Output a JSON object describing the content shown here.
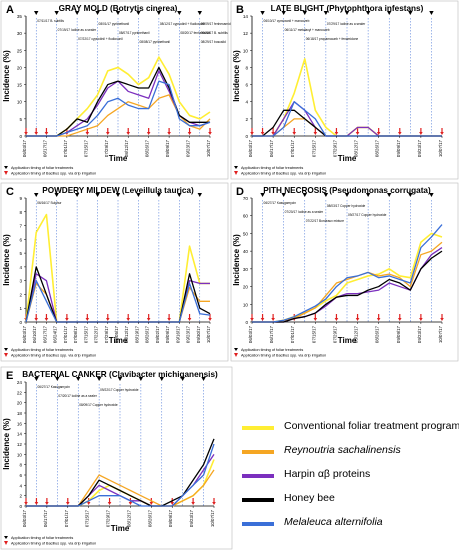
{
  "colors": {
    "conventional": "#ffee33",
    "reynoutria": "#f5a623",
    "harpin": "#7b2fbe",
    "honeybee": "#000000",
    "melaleuca": "#3a6fd8",
    "foliar_marker": "#000000",
    "drip_marker": "#e02020",
    "guide_line": "#2a5fd0"
  },
  "legend": [
    {
      "label": "Conventional foliar treatment program",
      "color_key": "conventional"
    },
    {
      "label": "Reynoutria sachalinensis",
      "color_key": "reynoutria"
    },
    {
      "label": "Harpin αβ proteins",
      "color_key": "harpin"
    },
    {
      "label": "Honey bee",
      "color_key": "honeybee"
    },
    {
      "label": "Melaleuca alternifolia",
      "color_key": "melaleuca"
    }
  ],
  "common": {
    "ylabel": "Incidence (%)",
    "xlabel": "Time",
    "note_foliar": "Application timing of foliar treatments",
    "note_drip": "Application timing of Bacillus spp. via drip irrigation"
  },
  "chart_data": [
    {
      "panel": "A",
      "type": "line",
      "title": "GRAY MOLD (Botrytis cinerea)",
      "x": [
        "06/03/17",
        "06/10/17",
        "06/17/17",
        "06/24/17",
        "07/01/17",
        "07/08/17",
        "07/15/17",
        "07/22/17",
        "07/29/17",
        "08/05/17",
        "08/12/17",
        "08/19/17",
        "08/26/17",
        "09/02/17",
        "09/09/17",
        "09/16/17",
        "09/23/17",
        "09/30/17",
        "10/07/17"
      ],
      "x_ticks": [
        "06/03/17",
        "06/17/17",
        "07/01/17",
        "07/15/17",
        "07/29/17",
        "08/12/17",
        "08/26/17",
        "09/09/17",
        "09/23/17",
        "10/07/17"
      ],
      "ylim": [
        0,
        35
      ],
      "yticks": [
        0,
        5,
        10,
        15,
        20,
        25,
        30,
        35
      ],
      "series": [
        {
          "name": "Conventional foliar treatment program",
          "color_key": "conventional",
          "values": [
            0,
            0,
            0,
            0,
            2,
            5,
            8,
            12,
            19,
            20,
            18,
            15,
            17,
            23,
            18,
            10,
            6,
            5,
            7
          ]
        },
        {
          "name": "Reynoutria sachalinensis",
          "color_key": "reynoutria",
          "values": [
            0,
            0,
            0,
            0,
            0,
            1,
            2,
            3,
            6,
            8,
            10,
            9,
            8,
            11,
            12,
            6,
            3,
            2,
            5
          ]
        },
        {
          "name": "Harpin αβ proteins",
          "color_key": "harpin",
          "values": [
            0,
            0,
            0,
            0,
            1,
            3,
            5,
            9,
            14,
            16,
            13,
            12,
            11,
            19,
            13,
            6,
            4,
            3,
            4
          ]
        },
        {
          "name": "Honey bee",
          "color_key": "honeybee",
          "values": [
            0,
            0,
            0,
            0,
            2,
            5,
            4,
            10,
            15,
            16,
            15,
            14,
            14,
            20,
            14,
            6,
            4,
            4,
            4
          ]
        },
        {
          "name": "Melaleuca alternifolia",
          "color_key": "melaleuca",
          "values": [
            0,
            0,
            0,
            0,
            1,
            2,
            3,
            6,
            10,
            11,
            9,
            8,
            8,
            16,
            15,
            5,
            3,
            3,
            4
          ]
        }
      ],
      "foliar_applications": [
        1,
        3,
        5,
        7,
        9,
        11,
        13,
        15,
        17
      ],
      "drip_applications": [
        0,
        1,
        2,
        4,
        6,
        8,
        10,
        12,
        14,
        16,
        18
      ],
      "annotations": [
        "07/11/17 B. subtilis",
        "07/19/17 Iodine as a sealer",
        "07/22/17 cyprodinil + fludioxonil",
        "08/01/17 pyrimethanil",
        "08/07/17 pyrimethanil",
        "08/08/17 pyrimethanil",
        "08/12/17 cyprodinil + fludioxonil",
        "08/20/17 fenhexamid",
        "08/29/17 boscalid",
        "09/09/17 fenhexamid",
        "09/22/17 B. subtilis"
      ]
    },
    {
      "panel": "B",
      "type": "line",
      "title": "LATE BLIGHT (Phytophthora infestans)",
      "x": [
        "06/03/17",
        "06/10/17",
        "06/17/17",
        "06/24/17",
        "07/01/17",
        "07/08/17",
        "07/15/17",
        "07/22/17",
        "07/29/17",
        "08/05/17",
        "08/12/17",
        "08/19/17",
        "08/26/17",
        "09/02/17",
        "09/09/17",
        "09/16/17",
        "09/23/17",
        "09/30/17",
        "10/07/17"
      ],
      "x_ticks": [
        "06/03/17",
        "06/17/17",
        "07/01/17",
        "07/15/17",
        "07/29/17",
        "08/12/17",
        "08/26/17",
        "09/09/17",
        "09/23/17",
        "10/07/17"
      ],
      "ylim": [
        0,
        14
      ],
      "yticks": [
        0,
        2,
        4,
        6,
        8,
        10,
        12,
        14
      ],
      "series": [
        {
          "name": "Conventional foliar treatment program",
          "color_key": "conventional",
          "values": [
            0,
            0,
            0,
            2,
            5,
            9,
            3,
            1,
            0,
            0,
            1,
            1,
            0,
            0,
            0,
            0,
            0,
            0,
            0
          ]
        },
        {
          "name": "Reynoutria sachalinensis",
          "color_key": "reynoutria",
          "values": [
            0,
            0,
            0,
            1,
            2,
            2,
            1,
            0,
            0,
            0,
            0,
            0,
            0,
            0,
            0,
            0,
            0,
            0,
            0
          ]
        },
        {
          "name": "Harpin αβ proteins",
          "color_key": "harpin",
          "values": [
            0,
            0,
            0,
            2,
            4,
            3,
            1,
            0,
            0,
            0,
            1,
            1,
            0,
            0,
            0,
            0,
            0,
            0,
            0
          ]
        },
        {
          "name": "Honey bee",
          "color_key": "honeybee",
          "values": [
            0,
            0,
            1,
            3,
            3,
            2,
            1,
            0,
            0,
            0,
            0,
            0,
            0,
            0,
            0,
            0,
            0,
            0,
            0
          ]
        },
        {
          "name": "Melaleuca alternifolia",
          "color_key": "melaleuca",
          "values": [
            0,
            0,
            0,
            1,
            4,
            3,
            2,
            0,
            0,
            0,
            0,
            0,
            0,
            0,
            0,
            0,
            0,
            0,
            0
          ]
        }
      ],
      "foliar_applications": [
        1,
        3,
        5,
        7,
        9,
        11,
        13,
        15,
        17
      ],
      "drip_applications": [
        0,
        1,
        2,
        4,
        6,
        8,
        10,
        12,
        14,
        16,
        18
      ],
      "annotations": [
        "06/10/17 cymoxanil + mancozeb",
        "06/11/17 metalaxyl + mancozeb",
        "06/18/17 propamocarb + fenamidone",
        "07/29/17 iodine as a sealer"
      ]
    },
    {
      "panel": "C",
      "type": "line",
      "title": "POWDERY MILDEW (Leveillula taurica)",
      "x": [
        "06/03/17",
        "06/10/17",
        "06/17/17",
        "06/24/17",
        "07/01/17",
        "07/08/17",
        "07/15/17",
        "07/22/17",
        "07/29/17",
        "08/05/17",
        "08/12/17",
        "08/19/17",
        "08/26/17",
        "09/02/17",
        "09/09/17",
        "09/16/17",
        "09/23/17",
        "09/30/17",
        "10/07/17"
      ],
      "x_ticks": [
        "06/03/17",
        "06/10/17",
        "06/17/17",
        "06/24/17",
        "07/01/17",
        "07/08/17",
        "07/15/17",
        "07/22/17",
        "07/29/17",
        "08/05/17",
        "08/12/17",
        "08/19/17",
        "08/26/17",
        "09/02/17",
        "09/09/17",
        "09/16/17",
        "09/23/17",
        "09/30/17",
        "10/07/17"
      ],
      "ylim": [
        0,
        9
      ],
      "yticks": [
        0,
        1,
        2,
        3,
        4,
        5,
        6,
        7,
        8,
        9
      ],
      "series": [
        {
          "name": "Conventional foliar treatment program",
          "color_key": "conventional",
          "values": [
            0,
            6.5,
            7.8,
            0,
            0,
            0,
            0,
            0,
            0,
            0,
            0,
            0,
            0,
            0,
            0,
            0,
            5.5,
            2.8,
            2.8
          ]
        },
        {
          "name": "Reynoutria sachalinensis",
          "color_key": "reynoutria",
          "values": [
            0,
            2.8,
            2,
            0,
            0,
            0,
            0,
            0,
            0,
            0,
            0,
            0,
            0,
            0,
            0,
            0,
            2.5,
            1.5,
            1.5
          ]
        },
        {
          "name": "Harpin αβ proteins",
          "color_key": "harpin",
          "values": [
            0,
            3.5,
            3,
            0,
            0,
            0,
            0,
            0,
            0,
            0,
            0,
            0,
            0,
            0,
            0,
            0,
            3,
            2.8,
            2.8
          ]
        },
        {
          "name": "Honey bee",
          "color_key": "honeybee",
          "values": [
            0,
            4,
            2,
            0,
            0,
            0,
            0,
            0,
            0,
            0,
            0,
            0,
            0,
            0,
            0,
            0,
            3.5,
            1,
            0.6
          ]
        },
        {
          "name": "Melaleuca alternifolia",
          "color_key": "melaleuca",
          "values": [
            0,
            3,
            1.5,
            0,
            0,
            0,
            0,
            0,
            0,
            0,
            0,
            0,
            0,
            0,
            0,
            0,
            2.8,
            0.6,
            0.5
          ]
        }
      ],
      "foliar_applications": [
        1,
        3,
        5,
        7,
        9,
        11,
        13,
        15,
        17
      ],
      "drip_applications": [
        0,
        1,
        2,
        4,
        6,
        8,
        10,
        12,
        14,
        16,
        18
      ],
      "annotations": [
        "06/16/17 Sulphur"
      ]
    },
    {
      "panel": "D",
      "type": "line",
      "title": "PITH NECROSIS (Pseudomonas corrugata)",
      "x": [
        "06/03/17",
        "06/10/17",
        "06/17/17",
        "06/24/17",
        "07/01/17",
        "07/08/17",
        "07/15/17",
        "07/22/17",
        "07/29/17",
        "08/05/17",
        "08/12/17",
        "08/19/17",
        "08/26/17",
        "09/02/17",
        "09/09/17",
        "09/16/17",
        "09/23/17",
        "09/30/17",
        "10/07/17"
      ],
      "x_ticks": [
        "06/03/17",
        "06/17/17",
        "07/01/17",
        "07/15/17",
        "07/29/17",
        "08/12/17",
        "08/26/17",
        "09/09/17",
        "09/23/17",
        "10/07/17"
      ],
      "ylim": [
        0,
        70
      ],
      "yticks": [
        0,
        10,
        20,
        30,
        40,
        50,
        60,
        70
      ],
      "series": [
        {
          "name": "Conventional foliar treatment program",
          "color_key": "conventional",
          "values": [
            0,
            0,
            0,
            1,
            3,
            5,
            8,
            12,
            15,
            22,
            24,
            26,
            27,
            30,
            26,
            25,
            45,
            50,
            48
          ]
        },
        {
          "name": "Reynoutria sachalinensis",
          "color_key": "reynoutria",
          "values": [
            0,
            0,
            0,
            1,
            2,
            5,
            8,
            15,
            22,
            24,
            26,
            28,
            26,
            27,
            25,
            20,
            38,
            40,
            45
          ]
        },
        {
          "name": "Harpin αβ proteins",
          "color_key": "harpin",
          "values": [
            0,
            0,
            0,
            0,
            2,
            3,
            5,
            9,
            14,
            16,
            16,
            17,
            18,
            22,
            20,
            18,
            30,
            38,
            42
          ]
        },
        {
          "name": "Honey bee",
          "color_key": "honeybee",
          "values": [
            0,
            0,
            0,
            0,
            2,
            3,
            5,
            10,
            14,
            15,
            15,
            18,
            20,
            24,
            22,
            18,
            30,
            36,
            40
          ]
        },
        {
          "name": "Melaleuca alternifolia",
          "color_key": "melaleuca",
          "values": [
            0,
            0,
            0,
            1,
            3,
            6,
            9,
            13,
            20,
            25,
            26,
            28,
            25,
            26,
            24,
            22,
            42,
            48,
            55
          ]
        }
      ],
      "foliar_applications": [
        1,
        3,
        5,
        7,
        9,
        11,
        13,
        15,
        17
      ],
      "drip_applications": [
        0,
        1,
        2,
        4,
        6,
        8,
        10,
        12,
        14,
        16,
        18
      ],
      "annotations": [
        "06/27/17 Kasugamycin",
        "07/20/17 Iodine as a sealer",
        "07/22/17 Bordeaux mixture",
        "08/03/17 Copper hydroxide",
        "09/27/17 Copper hydroxide"
      ]
    },
    {
      "panel": "E",
      "type": "line",
      "title": "BACTERIAL CANKER (Clavibacter michiganensis)",
      "x": [
        "06/03/17",
        "06/10/17",
        "06/17/17",
        "06/24/17",
        "07/01/17",
        "07/08/17",
        "07/15/17",
        "07/22/17",
        "07/29/17",
        "08/05/17",
        "08/12/17",
        "08/19/17",
        "08/26/17",
        "09/02/17",
        "09/09/17",
        "09/16/17",
        "09/23/17",
        "09/30/17",
        "10/07/17"
      ],
      "x_ticks": [
        "06/03/17",
        "06/17/17",
        "07/01/17",
        "07/15/17",
        "07/29/17",
        "08/12/17",
        "08/26/17",
        "09/09/17",
        "09/23/17",
        "10/07/17"
      ],
      "ylim": [
        0,
        24
      ],
      "yticks": [
        0,
        2,
        4,
        6,
        8,
        10,
        12,
        14,
        16,
        18,
        20,
        22,
        24
      ],
      "series": [
        {
          "name": "Conventional foliar treatment program",
          "color_key": "conventional",
          "values": [
            0,
            0,
            0,
            0,
            0,
            0,
            1,
            3,
            4,
            3,
            2,
            1,
            0,
            0,
            0,
            1,
            2,
            4,
            9
          ]
        },
        {
          "name": "Reynoutria sachalinensis",
          "color_key": "reynoutria",
          "values": [
            0,
            0,
            0,
            0,
            0,
            0,
            3,
            6,
            5,
            4,
            3,
            2,
            1,
            0,
            0,
            1,
            2,
            4,
            7
          ]
        },
        {
          "name": "Harpin αβ proteins",
          "color_key": "harpin",
          "values": [
            0,
            0,
            0,
            0,
            0,
            0,
            2,
            4,
            3,
            2,
            1,
            1,
            0,
            0,
            0,
            2,
            4,
            7,
            10
          ]
        },
        {
          "name": "Honey bee",
          "color_key": "honeybee",
          "values": [
            0,
            0,
            0,
            0,
            0,
            0,
            2,
            5,
            4,
            3,
            2,
            1,
            0,
            0,
            1,
            2,
            5,
            8,
            13
          ]
        },
        {
          "name": "Melaleuca alternifolia",
          "color_key": "melaleuca",
          "values": [
            0,
            0,
            0,
            0,
            0,
            0,
            1,
            2,
            2,
            2,
            1,
            0,
            0,
            0,
            0,
            2,
            4,
            6,
            12
          ]
        }
      ],
      "foliar_applications": [
        1,
        3,
        5,
        7,
        9,
        11,
        13,
        15,
        17
      ],
      "drip_applications": [
        0,
        1,
        2,
        4,
        6,
        8,
        10,
        12,
        14,
        16,
        18
      ],
      "annotations": [
        "06/27/17 Kasugamycin",
        "07/20/17 Iodine as a sealer",
        "08/09/17 Copper hydroxide",
        "09/22/17 Copper hydroxide"
      ]
    }
  ]
}
